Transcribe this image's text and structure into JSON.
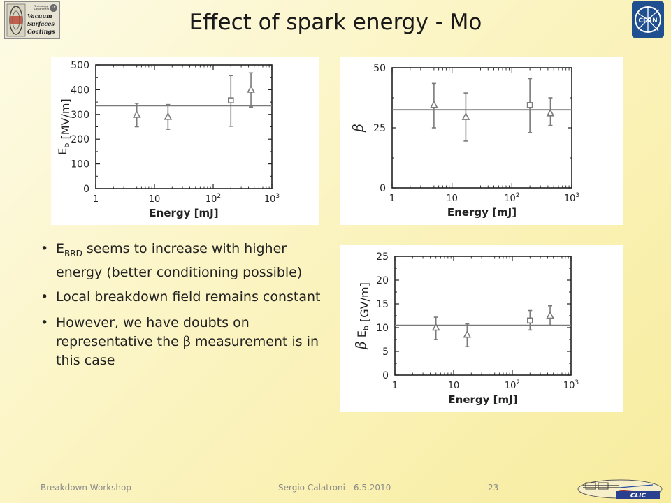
{
  "slide": {
    "title": "Effect of spark energy - Mo",
    "logo_left": {
      "line1": "Vacuum",
      "line2": "Surfaces",
      "line3": "Coatings",
      "small": "Technology Department",
      "badge": "TE"
    },
    "logo_right": {
      "text": "CERN"
    },
    "bullets": [
      {
        "main": "E",
        "sub": "BRD",
        "rest": " seems to increase with higher energy (better conditioning possible)"
      },
      {
        "main": "Local breakdown field remains constant"
      },
      {
        "main": "However, we have doubts on representative the ",
        "symbol": "β",
        "rest": " measurement is in this case"
      }
    ],
    "footer": {
      "left": "Breakdown Workshop",
      "center": "Sergio Calatroni - 6.5.2010",
      "page": "23"
    },
    "clic_logo": {
      "text": "CLIC"
    }
  },
  "chart_data": [
    {
      "type": "scatter",
      "title": "",
      "xlabel": "Energy [mJ]",
      "ylabel": "Eb [MV/m]",
      "xscale": "log",
      "xlim": [
        1,
        1000
      ],
      "ylim": [
        0,
        500
      ],
      "yticks": [
        0,
        100,
        200,
        300,
        400,
        500
      ],
      "xticks": [
        1,
        10,
        100,
        1000
      ],
      "xtick_labels": [
        {
          "base": "1",
          "exp": ""
        },
        {
          "base": "10",
          "exp": ""
        },
        {
          "base": "10",
          "exp": "2"
        },
        {
          "base": "10",
          "exp": "3"
        }
      ],
      "reference_line": 335,
      "points": [
        {
          "x": 5,
          "y": 298,
          "lo": 250,
          "hi": 345,
          "marker": "triangle"
        },
        {
          "x": 17,
          "y": 290,
          "lo": 240,
          "hi": 340,
          "marker": "triangle"
        },
        {
          "x": 200,
          "y": 357,
          "lo": 252,
          "hi": 457,
          "marker": "square"
        },
        {
          "x": 440,
          "y": 400,
          "lo": 330,
          "hi": 468,
          "marker": "triangle"
        }
      ]
    },
    {
      "type": "scatter",
      "title": "",
      "xlabel": "Energy [mJ]",
      "ylabel": "β",
      "xscale": "log",
      "xlim": [
        1,
        1000
      ],
      "ylim": [
        0,
        50
      ],
      "yticks": [
        0,
        25,
        50
      ],
      "xticks": [
        1,
        10,
        100,
        1000
      ],
      "xtick_labels": [
        {
          "base": "1",
          "exp": ""
        },
        {
          "base": "10",
          "exp": ""
        },
        {
          "base": "10",
          "exp": "2"
        },
        {
          "base": "10",
          "exp": "3"
        }
      ],
      "reference_line": 32.5,
      "points": [
        {
          "x": 5,
          "y": 34.5,
          "lo": 25,
          "hi": 43.5,
          "marker": "triangle"
        },
        {
          "x": 17,
          "y": 29.5,
          "lo": 19.5,
          "hi": 39.5,
          "marker": "triangle"
        },
        {
          "x": 200,
          "y": 34.5,
          "lo": 23,
          "hi": 45.5,
          "marker": "square"
        },
        {
          "x": 440,
          "y": 31,
          "lo": 26,
          "hi": 37.5,
          "marker": "triangle"
        }
      ]
    },
    {
      "type": "scatter",
      "title": "",
      "xlabel": "Energy [mJ]",
      "ylabel": "β Eb [GV/m]",
      "xscale": "log",
      "xlim": [
        1,
        1000
      ],
      "ylim": [
        0,
        25
      ],
      "yticks": [
        0,
        5,
        10,
        15,
        20,
        25
      ],
      "xticks": [
        1,
        10,
        100,
        1000
      ],
      "xtick_labels": [
        {
          "base": "1",
          "exp": ""
        },
        {
          "base": "10",
          "exp": ""
        },
        {
          "base": "10",
          "exp": "2"
        },
        {
          "base": "10",
          "exp": "3"
        }
      ],
      "reference_line": 10.5,
      "points": [
        {
          "x": 5,
          "y": 10,
          "lo": 7.5,
          "hi": 12.2,
          "marker": "triangle"
        },
        {
          "x": 17,
          "y": 8.5,
          "lo": 6,
          "hi": 10.8,
          "marker": "triangle"
        },
        {
          "x": 200,
          "y": 11.5,
          "lo": 9.5,
          "hi": 13.6,
          "marker": "square"
        },
        {
          "x": 440,
          "y": 12.5,
          "lo": 10.5,
          "hi": 14.6,
          "marker": "triangle"
        }
      ]
    }
  ]
}
